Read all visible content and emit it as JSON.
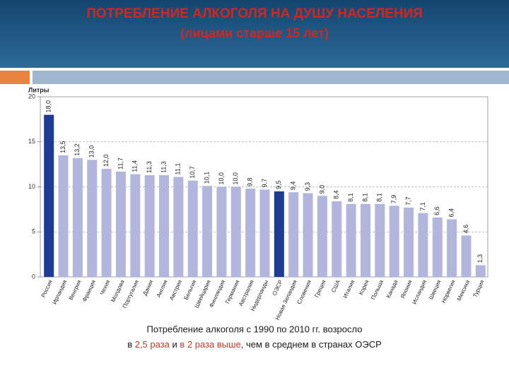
{
  "header": {
    "title": "ПОТРЕБЛЕНИЕ АЛКОГОЛЯ НА ДУШУ НАСЕЛЕНИЯ",
    "subtitle": "(лицами старше 15 лет)"
  },
  "chart_data": {
    "type": "bar",
    "y_label": "Литры",
    "categories": [
      "Россия",
      "Ирландия",
      "Венгрия",
      "Франция",
      "Чехия",
      "Молдова",
      "Португалия",
      "Дания",
      "Англия",
      "Австрия",
      "Бельгия",
      "Швейцария",
      "Финляндия",
      "Германия",
      "Австралия",
      "Нидерланды",
      "ОЭСР",
      "Новая Зеландия",
      "Словения",
      "Греция",
      "США",
      "Италия",
      "Корея",
      "Польша",
      "Канада",
      "Япония",
      "Исландия",
      "Швеция",
      "Норвегия",
      "Мексика",
      "Турция"
    ],
    "values": [
      18.0,
      13.5,
      13.2,
      13.0,
      12.0,
      11.7,
      11.4,
      11.3,
      11.3,
      11.1,
      10.7,
      10.1,
      10.0,
      10.0,
      9.8,
      9.7,
      9.5,
      9.4,
      9.3,
      9.0,
      8.4,
      8.1,
      8.1,
      8.1,
      7.9,
      7.7,
      7.1,
      6.6,
      6.4,
      4.6,
      1.3
    ],
    "value_labels": [
      "18,0",
      "13,5",
      "13,2",
      "13,0",
      "12,0",
      "11,7",
      "11,4",
      "11,3",
      "11,3",
      "11,1",
      "10,7",
      "10,1",
      "10,0",
      "10,0",
      "9,8",
      "9,7",
      "9,5",
      "9,4",
      "9,3",
      "9,0",
      "8,4",
      "8,1",
      "8,1",
      "8,1",
      "7,9",
      "7,7",
      "7,1",
      "6,6",
      "6,4",
      "4,6",
      "1,3"
    ],
    "colors": [
      "#1f3a93",
      "#b3b6dc",
      "#b3b6dc",
      "#b3b6dc",
      "#b3b6dc",
      "#b3b6dc",
      "#b3b6dc",
      "#b3b6dc",
      "#b3b6dc",
      "#b3b6dc",
      "#b3b6dc",
      "#b3b6dc",
      "#b3b6dc",
      "#b3b6dc",
      "#b3b6dc",
      "#b3b6dc",
      "#1f3a93",
      "#b3b6dc",
      "#b3b6dc",
      "#b3b6dc",
      "#b3b6dc",
      "#b3b6dc",
      "#b3b6dc",
      "#b3b6dc",
      "#b3b6dc",
      "#b3b6dc",
      "#b3b6dc",
      "#b3b6dc",
      "#b3b6dc",
      "#b3b6dc",
      "#b3b6dc"
    ],
    "ylim": [
      0,
      20
    ],
    "yticks": [
      0,
      5,
      10,
      15,
      20
    ],
    "grid": true
  },
  "caption": {
    "line1": "Потребление алкоголя с 1990 по 2010 гг. возросло",
    "line2": [
      {
        "text": "в ",
        "color": "#1a1a1a"
      },
      {
        "text": "2,5 раза",
        "color": "#c0392b"
      },
      {
        "text": " и ",
        "color": "#1a1a1a"
      },
      {
        "text": "в 2 раза выше",
        "color": "#c0392b"
      },
      {
        "text": ", чем в среднем в странах ОЭСР",
        "color": "#1a1a1a"
      }
    ]
  }
}
